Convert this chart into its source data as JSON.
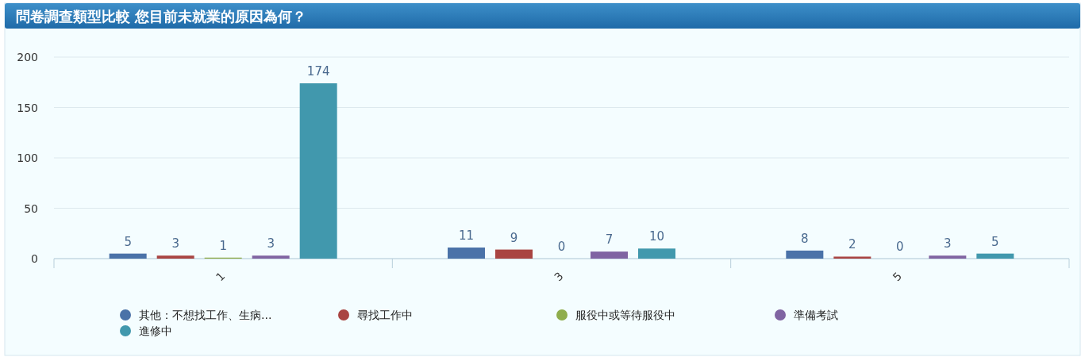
{
  "chart_data": {
    "type": "bar",
    "title": "問卷調查類型比較 您目前未就業的原因為何？",
    "categories": [
      "1",
      "3",
      "5"
    ],
    "series": [
      {
        "name": "其他：不想找工作、生病...",
        "color": "#4a72a8",
        "values": [
          5,
          11,
          8
        ]
      },
      {
        "name": "尋找工作中",
        "color": "#a94442",
        "values": [
          3,
          9,
          2
        ]
      },
      {
        "name": "服役中或等待服役中",
        "color": "#8fad4c",
        "values": [
          1,
          0,
          0
        ]
      },
      {
        "name": "準備考試",
        "color": "#8064a2",
        "values": [
          3,
          7,
          3
        ]
      },
      {
        "name": "進修中",
        "color": "#4198ad",
        "values": [
          174,
          10,
          5
        ]
      }
    ],
    "ylim": [
      0,
      200
    ],
    "yticks": [
      0,
      50,
      100,
      150,
      200
    ],
    "grid": "y",
    "data_labels": true,
    "legend": "bottom"
  }
}
